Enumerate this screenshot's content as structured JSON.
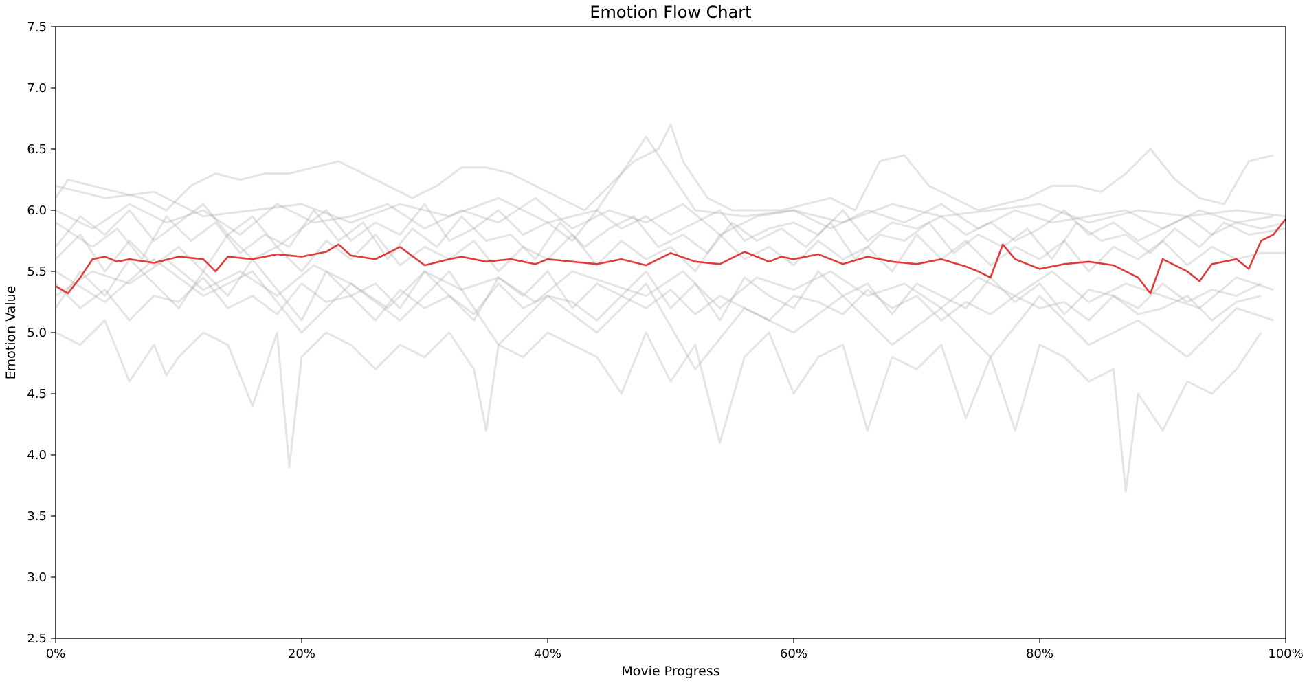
{
  "chart_data": {
    "type": "line",
    "title": "Emotion Flow Chart",
    "xlabel": "Movie Progress",
    "ylabel": "Emotion Value",
    "xlim": [
      0,
      100
    ],
    "ylim": [
      2.5,
      7.5
    ],
    "x_ticks": [
      0,
      20,
      40,
      60,
      80,
      100
    ],
    "x_tick_labels": [
      "0%",
      "20%",
      "40%",
      "60%",
      "80%",
      "100%"
    ],
    "y_ticks": [
      2.5,
      3.0,
      3.5,
      4.0,
      4.5,
      5.0,
      5.5,
      6.0,
      6.5,
      7.0,
      7.5
    ],
    "y_tick_labels": [
      "2.5",
      "3.0",
      "3.5",
      "4.0",
      "4.5",
      "5.0",
      "5.5",
      "6.0",
      "6.5",
      "7.0",
      "7.5"
    ],
    "grid": false,
    "legend": "none",
    "colors": {
      "background_series": "#9e9e9e",
      "mean_series": "#e03a3a"
    },
    "mean_series": {
      "x": [
        0,
        1,
        2,
        3,
        4,
        5,
        6,
        8,
        10,
        12,
        13,
        14,
        16,
        18,
        20,
        22,
        23,
        24,
        26,
        28,
        30,
        32,
        33,
        35,
        37,
        39,
        40,
        42,
        44,
        46,
        48,
        50,
        52,
        54,
        56,
        58,
        59,
        60,
        62,
        64,
        66,
        68,
        70,
        72,
        74,
        75,
        76,
        77,
        78,
        80,
        82,
        84,
        86,
        88,
        89,
        90,
        92,
        93,
        94,
        96,
        97,
        98,
        99,
        100
      ],
      "y": [
        5.38,
        5.32,
        5.45,
        5.6,
        5.62,
        5.58,
        5.6,
        5.57,
        5.62,
        5.6,
        5.5,
        5.62,
        5.6,
        5.64,
        5.62,
        5.66,
        5.72,
        5.63,
        5.6,
        5.7,
        5.55,
        5.6,
        5.62,
        5.58,
        5.6,
        5.56,
        5.6,
        5.58,
        5.56,
        5.6,
        5.55,
        5.65,
        5.58,
        5.56,
        5.66,
        5.58,
        5.62,
        5.6,
        5.64,
        5.56,
        5.62,
        5.58,
        5.56,
        5.6,
        5.54,
        5.5,
        5.45,
        5.72,
        5.6,
        5.52,
        5.56,
        5.58,
        5.55,
        5.45,
        5.32,
        5.6,
        5.5,
        5.42,
        5.56,
        5.6,
        5.52,
        5.75,
        5.8,
        5.93
      ]
    },
    "background_series": [
      {
        "x": [
          0,
          3,
          5,
          7,
          9,
          11,
          13,
          15,
          17,
          19,
          21,
          23,
          25,
          27,
          29,
          31,
          33,
          35,
          37,
          39,
          41,
          43,
          45,
          47,
          49,
          51,
          53,
          55,
          57,
          59,
          61,
          63,
          65,
          67,
          69,
          71,
          73,
          75,
          77,
          79,
          81,
          83,
          85,
          87,
          89,
          91,
          93,
          95,
          97,
          100
        ],
        "y": [
          5.9,
          5.7,
          5.85,
          5.6,
          5.95,
          5.75,
          5.9,
          5.65,
          5.8,
          5.7,
          6.0,
          5.75,
          5.9,
          5.6,
          5.85,
          5.7,
          5.95,
          5.75,
          5.8,
          5.6,
          5.9,
          5.7,
          5.85,
          5.95,
          5.7,
          5.8,
          5.65,
          5.9,
          5.75,
          5.85,
          5.7,
          5.9,
          5.6,
          5.8,
          5.75,
          5.9,
          5.65,
          5.8,
          5.7,
          5.85,
          5.6,
          5.9,
          5.75,
          5.8,
          5.65,
          5.85,
          5.7,
          5.9,
          5.8,
          5.85
        ]
      },
      {
        "x": [
          0,
          2,
          4,
          6,
          8,
          10,
          12,
          14,
          16,
          18,
          20,
          22,
          24,
          26,
          28,
          30,
          32,
          34,
          36,
          38,
          40,
          42,
          44,
          46,
          48,
          50,
          52,
          54,
          56,
          58,
          60,
          62,
          64,
          66,
          68,
          70,
          72,
          74,
          76,
          78,
          80,
          82,
          84,
          86,
          88,
          90,
          92,
          94,
          96,
          98
        ],
        "y": [
          5.4,
          5.2,
          5.35,
          5.1,
          5.3,
          5.25,
          5.45,
          5.2,
          5.3,
          5.15,
          5.4,
          5.25,
          5.3,
          5.1,
          5.35,
          5.2,
          5.3,
          5.15,
          5.4,
          5.2,
          5.3,
          5.25,
          5.1,
          5.3,
          5.2,
          5.35,
          5.15,
          5.3,
          5.2,
          5.1,
          5.3,
          5.25,
          5.15,
          5.35,
          5.2,
          5.3,
          5.1,
          5.25,
          5.15,
          5.3,
          5.2,
          5.25,
          5.1,
          5.3,
          5.15,
          5.2,
          5.3,
          5.1,
          5.25,
          5.3
        ]
      },
      {
        "x": [
          0,
          1,
          3,
          5,
          7,
          9,
          11,
          13,
          15,
          17,
          19,
          21,
          23,
          25,
          27,
          29,
          31,
          33,
          35,
          37,
          39,
          41,
          43,
          45,
          47,
          49,
          50,
          51,
          53,
          55,
          57,
          59,
          61,
          63,
          65,
          67,
          69,
          71,
          73,
          75,
          77,
          79,
          81,
          83,
          85,
          87,
          89,
          91,
          93,
          95,
          97,
          99
        ],
        "y": [
          6.1,
          6.25,
          6.2,
          6.15,
          6.1,
          6.0,
          6.2,
          6.3,
          6.25,
          6.3,
          6.3,
          6.35,
          6.4,
          6.3,
          6.2,
          6.1,
          6.2,
          6.35,
          6.35,
          6.3,
          6.2,
          6.1,
          6.0,
          6.2,
          6.4,
          6.5,
          6.7,
          6.4,
          6.1,
          6.0,
          6.0,
          6.0,
          6.05,
          6.1,
          6.0,
          6.4,
          6.45,
          6.2,
          6.1,
          6.0,
          6.05,
          6.1,
          6.2,
          6.2,
          6.15,
          6.3,
          6.5,
          6.25,
          6.1,
          6.05,
          6.4,
          6.45
        ]
      },
      {
        "x": [
          0,
          2,
          4,
          6,
          8,
          9,
          10,
          12,
          14,
          16,
          18,
          19,
          20,
          22,
          24,
          26,
          28,
          30,
          32,
          34,
          35,
          36,
          38,
          40,
          42,
          44,
          46,
          48,
          50,
          52,
          54,
          56,
          58,
          60,
          62,
          64,
          66,
          68,
          70,
          72,
          74,
          76,
          78,
          80,
          82,
          84,
          86,
          87,
          88,
          90,
          92,
          94,
          96,
          98
        ],
        "y": [
          5.0,
          4.9,
          5.1,
          4.6,
          4.9,
          4.65,
          4.8,
          5.0,
          4.9,
          4.4,
          5.0,
          3.9,
          4.8,
          5.0,
          4.9,
          4.7,
          4.9,
          4.8,
          5.0,
          4.7,
          4.2,
          4.9,
          4.8,
          5.0,
          4.9,
          4.8,
          4.5,
          5.0,
          4.6,
          4.9,
          4.1,
          4.8,
          5.0,
          4.5,
          4.8,
          4.9,
          4.2,
          4.8,
          4.7,
          4.9,
          4.3,
          4.8,
          4.2,
          4.9,
          4.8,
          4.6,
          4.7,
          3.7,
          4.5,
          4.2,
          4.6,
          4.5,
          4.7,
          5.0
        ]
      },
      {
        "x": [
          0,
          2,
          4,
          6,
          8,
          10,
          12,
          14,
          16,
          18,
          20,
          22,
          24,
          26,
          28,
          30,
          32,
          34,
          36,
          38,
          40,
          42,
          44,
          46,
          48,
          50,
          52,
          54,
          56,
          58,
          60,
          62,
          64,
          66,
          68,
          70,
          72,
          74,
          76,
          78,
          80,
          82,
          84,
          86,
          88,
          90,
          92,
          94,
          96,
          98,
          100
        ],
        "y": [
          5.6,
          5.8,
          5.5,
          5.75,
          5.55,
          5.7,
          5.5,
          5.8,
          5.6,
          5.7,
          5.5,
          5.75,
          5.6,
          5.8,
          5.55,
          5.7,
          5.6,
          5.75,
          5.5,
          5.7,
          5.6,
          5.8,
          5.55,
          5.75,
          5.6,
          5.7,
          5.5,
          5.8,
          5.6,
          5.7,
          5.55,
          5.75,
          5.6,
          5.7,
          5.5,
          5.8,
          5.6,
          5.75,
          5.55,
          5.7,
          5.6,
          5.75,
          5.5,
          5.7,
          5.6,
          5.75,
          5.55,
          5.7,
          5.6,
          5.65,
          5.65
        ]
      },
      {
        "x": [
          0,
          3,
          6,
          9,
          12,
          15,
          18,
          21,
          24,
          27,
          30,
          33,
          36,
          39,
          42,
          45,
          48,
          51,
          54,
          57,
          60,
          63,
          66,
          69,
          72,
          75,
          78,
          81,
          84,
          87,
          90,
          93,
          96,
          99
        ],
        "y": [
          5.3,
          5.5,
          5.4,
          5.6,
          5.35,
          5.5,
          5.3,
          5.55,
          5.4,
          5.2,
          5.5,
          5.35,
          5.45,
          5.25,
          5.5,
          5.4,
          5.3,
          5.5,
          5.2,
          5.45,
          5.35,
          5.5,
          5.3,
          5.4,
          5.2,
          5.45,
          5.3,
          5.5,
          5.25,
          5.4,
          5.3,
          5.2,
          5.45,
          5.35
        ]
      },
      {
        "x": [
          0,
          3,
          6,
          9,
          12,
          15,
          18,
          21,
          24,
          27,
          30,
          33,
          36,
          39,
          42,
          45,
          48,
          51,
          54,
          57,
          60,
          63,
          66,
          69,
          72,
          75,
          78,
          81,
          84,
          87,
          90,
          93,
          96,
          99
        ],
        "y": [
          6.0,
          5.85,
          6.05,
          5.9,
          6.0,
          5.8,
          6.05,
          5.9,
          5.95,
          6.05,
          5.85,
          6.0,
          5.9,
          6.1,
          5.85,
          6.0,
          5.9,
          6.05,
          5.8,
          5.95,
          6.0,
          5.85,
          6.0,
          5.9,
          6.05,
          5.85,
          6.0,
          5.9,
          5.95,
          6.0,
          5.85,
          6.0,
          5.9,
          5.95
        ]
      },
      {
        "x": [
          0,
          2,
          4,
          6,
          8,
          10,
          12,
          14,
          16,
          18,
          20,
          22,
          24,
          26,
          28,
          30,
          32,
          34,
          36,
          38,
          40,
          42,
          44,
          46,
          48,
          50,
          52,
          54,
          56,
          58,
          60,
          62,
          64,
          66,
          68,
          70,
          72,
          74,
          76,
          78,
          80,
          82,
          84,
          86,
          88,
          90,
          92,
          94,
          96,
          98
        ],
        "y": [
          5.2,
          5.5,
          5.3,
          5.6,
          5.4,
          5.2,
          5.5,
          5.3,
          5.6,
          5.35,
          5.1,
          5.5,
          5.3,
          5.4,
          5.2,
          5.5,
          5.3,
          5.1,
          5.45,
          5.3,
          5.5,
          5.2,
          5.4,
          5.3,
          5.5,
          5.2,
          5.4,
          5.1,
          5.45,
          5.3,
          5.2,
          5.5,
          5.3,
          5.4,
          5.15,
          5.4,
          5.3,
          5.2,
          5.45,
          5.25,
          5.4,
          5.15,
          5.35,
          5.3,
          5.2,
          5.4,
          5.25,
          5.35,
          5.3,
          5.4
        ]
      },
      {
        "x": [
          0,
          2,
          4,
          6,
          8,
          10,
          12,
          14,
          16,
          18,
          20,
          22,
          24,
          26,
          28,
          30,
          32,
          34,
          36,
          38,
          40,
          42,
          44,
          46,
          48,
          50,
          52,
          54,
          56,
          58,
          60,
          62,
          64,
          66,
          68,
          70,
          72,
          74,
          76,
          78,
          80,
          82,
          84,
          86,
          88,
          90,
          92,
          94,
          96,
          98,
          100
        ],
        "y": [
          5.7,
          5.95,
          5.8,
          6.0,
          5.75,
          5.9,
          6.05,
          5.8,
          5.95,
          5.7,
          5.85,
          6.0,
          5.75,
          5.9,
          5.8,
          6.05,
          5.75,
          5.85,
          6.0,
          5.8,
          5.9,
          5.75,
          6.0,
          5.85,
          5.95,
          5.8,
          5.9,
          6.0,
          5.75,
          5.85,
          5.9,
          5.8,
          6.0,
          5.75,
          5.9,
          5.85,
          5.95,
          5.8,
          5.9,
          5.75,
          5.85,
          6.0,
          5.8,
          5.9,
          5.75,
          5.85,
          5.95,
          5.8,
          5.9,
          5.85,
          5.9
        ]
      },
      {
        "x": [
          0,
          4,
          8,
          12,
          16,
          20,
          24,
          28,
          32,
          36,
          40,
          44,
          48,
          52,
          56,
          60,
          64,
          68,
          72,
          76,
          80,
          84,
          88,
          92,
          96,
          99
        ],
        "y": [
          5.5,
          5.25,
          5.6,
          5.3,
          5.5,
          5.0,
          5.4,
          5.1,
          5.5,
          4.9,
          5.3,
          5.0,
          5.4,
          4.7,
          5.2,
          5.0,
          5.3,
          4.9,
          5.2,
          4.8,
          5.3,
          4.9,
          5.1,
          4.8,
          5.2,
          5.1
        ]
      },
      {
        "x": [
          0,
          4,
          8,
          12,
          16,
          20,
          24,
          28,
          32,
          36,
          40,
          44,
          48,
          52,
          56,
          60,
          64,
          68,
          72,
          76,
          80,
          84,
          88,
          92,
          96,
          100
        ],
        "y": [
          6.2,
          6.1,
          6.15,
          5.95,
          6.0,
          6.05,
          5.9,
          6.05,
          5.95,
          6.1,
          5.9,
          6.0,
          6.6,
          6.0,
          5.95,
          6.0,
          5.9,
          6.05,
          5.95,
          6.0,
          6.05,
          5.9,
          6.0,
          5.95,
          6.0,
          5.95
        ]
      }
    ]
  }
}
